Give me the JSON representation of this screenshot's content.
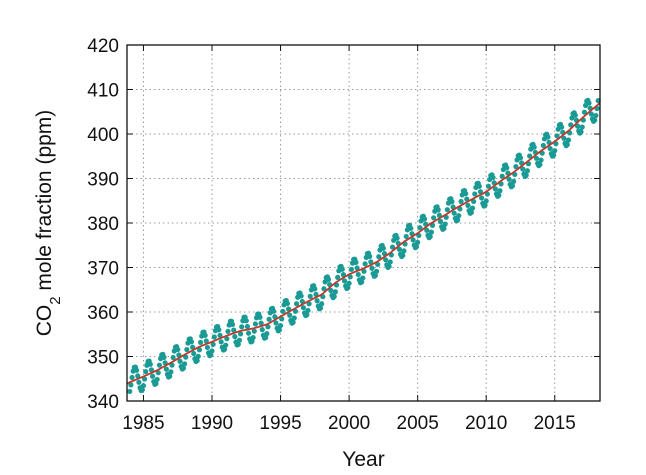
{
  "chart_data": {
    "type": "line",
    "title": "",
    "xlabel": "Year",
    "ylabel_parts": [
      "CO",
      "2",
      " mole fraction (ppm)"
    ],
    "xlim": [
      1983.8,
      2018.3
    ],
    "ylim": [
      340,
      420
    ],
    "x_ticks": [
      1985,
      1990,
      1995,
      2000,
      2005,
      2010,
      2015
    ],
    "y_ticks": [
      340,
      350,
      360,
      370,
      380,
      390,
      400,
      410,
      420
    ],
    "grid": true,
    "legend": "none",
    "series": [
      {
        "style": "dotted",
        "color": "#1a9a94",
        "description_visible": false,
        "x": [
          1984,
          1985,
          1986,
          1987,
          1988,
          1989,
          1990,
          1991,
          1992,
          1993,
          1994,
          1995,
          1996,
          1997,
          1998,
          1999,
          2000,
          2001,
          2002,
          2003,
          2004,
          2005,
          2006,
          2007,
          2008,
          2009,
          2010,
          2011,
          2012,
          2013,
          2014,
          2015,
          2016,
          2017,
          2018
        ],
        "y": [
          344.2,
          345.5,
          346.9,
          348.6,
          350.4,
          352.1,
          353.3,
          354.6,
          355.7,
          356.3,
          357.2,
          359.0,
          360.7,
          362.4,
          363.9,
          366.6,
          368.5,
          369.7,
          371.2,
          373.3,
          375.8,
          377.7,
          380.0,
          381.8,
          383.7,
          385.4,
          387.0,
          389.3,
          391.4,
          393.8,
          396.2,
          398.3,
          400.7,
          403.6,
          406.2
        ],
        "seasonal_amplitude": 3.0
      },
      {
        "style": "solid",
        "color": "#c0392b",
        "x": [
          1984,
          1985,
          1986,
          1987,
          1988,
          1989,
          1990,
          1991,
          1992,
          1993,
          1994,
          1995,
          1996,
          1997,
          1998,
          1999,
          2000,
          2001,
          2002,
          2003,
          2004,
          2005,
          2006,
          2007,
          2008,
          2009,
          2010,
          2011,
          2012,
          2013,
          2014,
          2015,
          2016,
          2017,
          2018
        ],
        "y": [
          344.2,
          345.5,
          346.9,
          348.6,
          350.4,
          352.1,
          353.3,
          354.6,
          355.7,
          356.3,
          357.2,
          359.0,
          360.7,
          362.4,
          363.9,
          366.6,
          368.5,
          369.7,
          371.2,
          373.3,
          375.8,
          377.7,
          380.0,
          381.8,
          383.7,
          385.4,
          387.0,
          389.3,
          391.4,
          393.8,
          396.2,
          398.3,
          400.7,
          403.6,
          406.2
        ]
      }
    ]
  }
}
